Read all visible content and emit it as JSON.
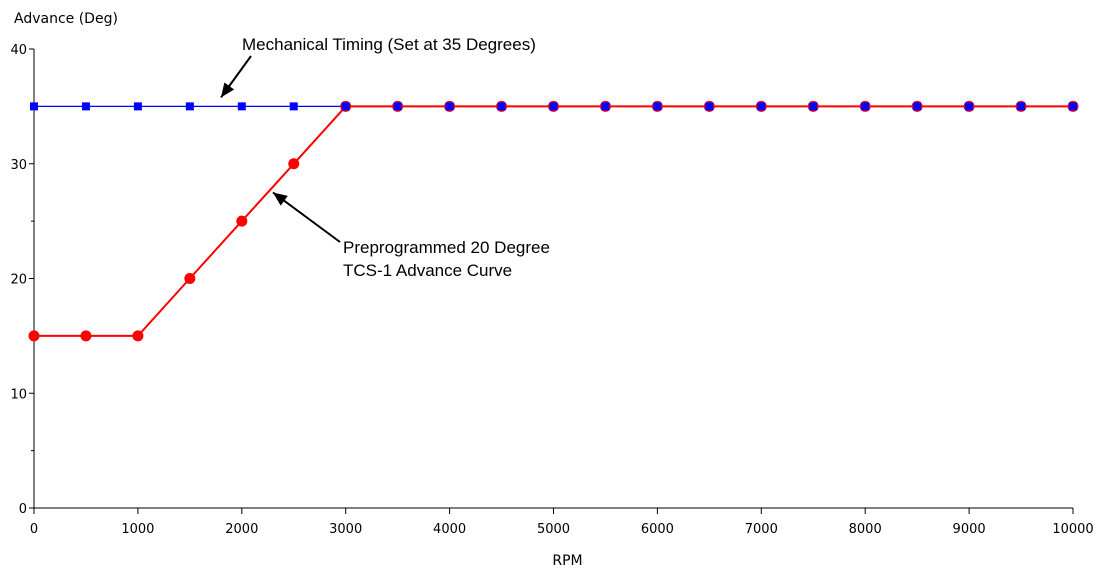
{
  "chart_data": {
    "type": "line",
    "title": "",
    "xlabel": "RPM",
    "ylabel": "Advance (Deg)",
    "xlim": [
      0,
      10000
    ],
    "ylim": [
      0,
      40
    ],
    "x_ticks": [
      "0",
      "1000",
      "2000",
      "3000",
      "4000",
      "5000",
      "6000",
      "7000",
      "8000",
      "9000",
      "10000"
    ],
    "y_ticks": [
      "0",
      "10",
      "20",
      "30",
      "40"
    ],
    "grid": false,
    "x": [
      0,
      500,
      1000,
      1500,
      2000,
      2500,
      3000,
      3500,
      4000,
      4500,
      5000,
      5500,
      6000,
      6500,
      7000,
      7500,
      8000,
      8500,
      9000,
      9500,
      10000
    ],
    "series": [
      {
        "color": "#0000ff",
        "marker": "square",
        "values": [
          35,
          35,
          35,
          35,
          35,
          35,
          35,
          35,
          35,
          35,
          35,
          35,
          35,
          35,
          35,
          35,
          35,
          35,
          35,
          35,
          35
        ]
      },
      {
        "color": "#ff0000",
        "marker": "circle",
        "values": [
          15,
          15,
          15,
          20,
          25,
          30,
          35,
          35,
          35,
          35,
          35,
          35,
          35,
          35,
          35,
          35,
          35,
          35,
          35,
          35,
          35
        ]
      }
    ],
    "annotations": [
      {
        "lines": [
          "Mechanical Timing (Set at 35 Degrees)"
        ],
        "arrow_target": [
          1800,
          35
        ]
      },
      {
        "lines": [
          "Preprogrammed 20 Degree",
          "TCS-1 Advance Curve"
        ],
        "arrow_target": [
          2300,
          27.5
        ]
      }
    ]
  }
}
